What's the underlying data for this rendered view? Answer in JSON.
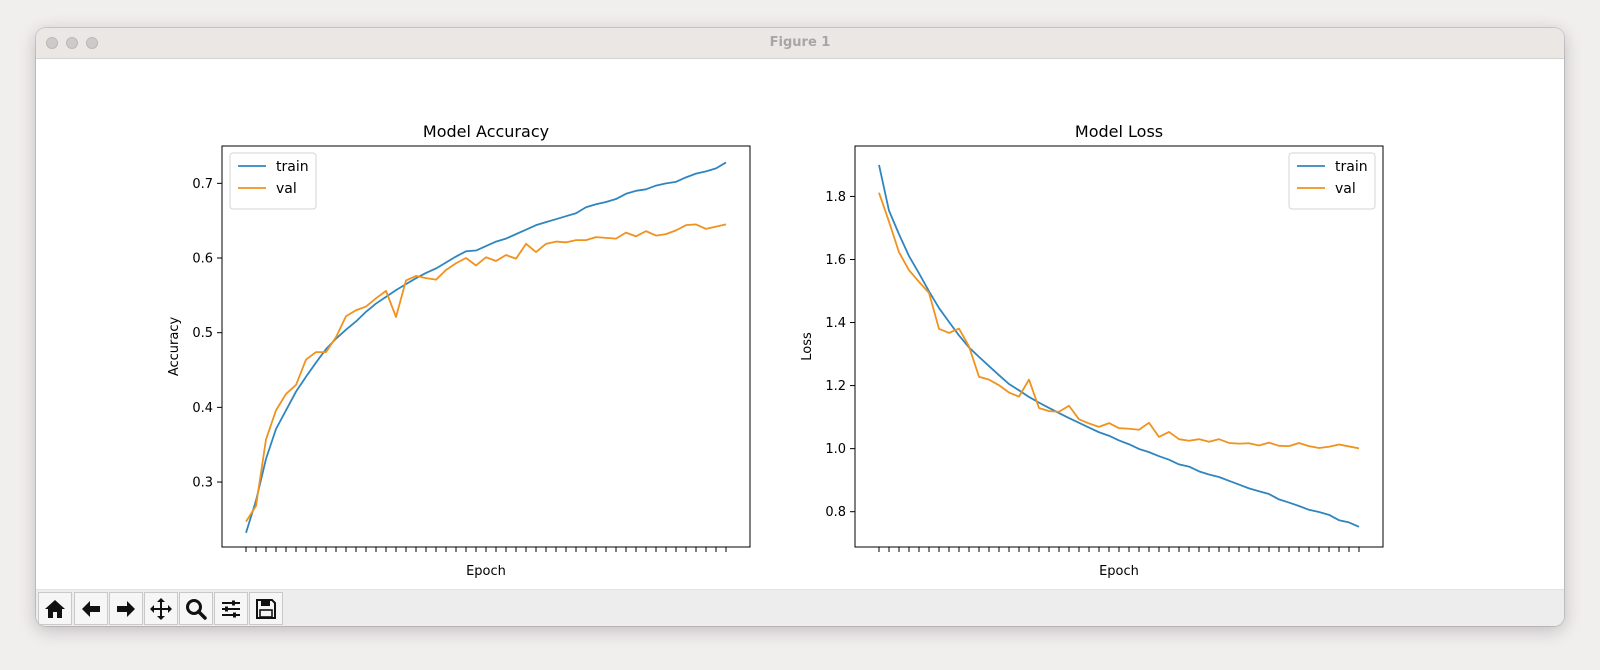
{
  "window": {
    "title": "Figure 1"
  },
  "toolbar": {
    "buttons": [
      {
        "name": "home-button",
        "icon": "home-icon"
      },
      {
        "name": "back-button",
        "icon": "arrow-left-icon"
      },
      {
        "name": "forward-button",
        "icon": "arrow-right-icon"
      },
      {
        "name": "pan-button",
        "icon": "move-icon"
      },
      {
        "name": "zoom-button",
        "icon": "magnifier-icon"
      },
      {
        "name": "configure-subplots-button",
        "icon": "sliders-icon"
      },
      {
        "name": "save-button",
        "icon": "floppy-disk-icon"
      }
    ]
  },
  "colors": {
    "train": "#2f86bf",
    "val": "#f0921d"
  },
  "chart_data": [
    {
      "type": "line",
      "title": "Model Accuracy",
      "xlabel": "Epoch",
      "ylabel": "Accuracy",
      "xlim": [
        -2.4,
        50.4
      ],
      "ylim": [
        0.213,
        0.75
      ],
      "yticks": [
        "0.3",
        "0.4",
        "0.5",
        "0.6",
        "0.7"
      ],
      "yticks_values": [
        0.3,
        0.4,
        0.5,
        0.6,
        0.7
      ],
      "legend": "upper left",
      "x": [
        0,
        1,
        2,
        3,
        4,
        5,
        6,
        7,
        8,
        9,
        10,
        11,
        12,
        13,
        14,
        15,
        16,
        17,
        18,
        19,
        20,
        21,
        22,
        23,
        24,
        25,
        26,
        27,
        28,
        29,
        30,
        31,
        32,
        33,
        34,
        35,
        36,
        37,
        38,
        39,
        40,
        41,
        42,
        43,
        44,
        45,
        46,
        47,
        48
      ],
      "series": [
        {
          "name": "train",
          "values": [
            0.232,
            0.275,
            0.331,
            0.371,
            0.396,
            0.421,
            0.441,
            0.46,
            0.478,
            0.492,
            0.504,
            0.515,
            0.528,
            0.539,
            0.548,
            0.557,
            0.565,
            0.573,
            0.58,
            0.586,
            0.594,
            0.602,
            0.609,
            0.61,
            0.616,
            0.622,
            0.626,
            0.632,
            0.638,
            0.644,
            0.648,
            0.652,
            0.656,
            0.66,
            0.668,
            0.672,
            0.675,
            0.679,
            0.686,
            0.69,
            0.692,
            0.697,
            0.7,
            0.702,
            0.708,
            0.713,
            0.716,
            0.72,
            0.728
          ]
        },
        {
          "name": "val",
          "values": [
            0.247,
            0.268,
            0.357,
            0.396,
            0.418,
            0.43,
            0.464,
            0.474,
            0.474,
            0.494,
            0.522,
            0.53,
            0.535,
            0.546,
            0.556,
            0.521,
            0.57,
            0.576,
            0.573,
            0.571,
            0.584,
            0.593,
            0.6,
            0.59,
            0.601,
            0.596,
            0.604,
            0.599,
            0.619,
            0.608,
            0.619,
            0.622,
            0.621,
            0.624,
            0.624,
            0.628,
            0.627,
            0.626,
            0.634,
            0.629,
            0.636,
            0.63,
            0.632,
            0.637,
            0.644,
            0.645,
            0.639,
            0.642,
            0.645
          ]
        }
      ]
    },
    {
      "type": "line",
      "title": "Model Loss",
      "xlabel": "Epoch",
      "ylabel": "Loss",
      "xlim": [
        -2.4,
        50.4
      ],
      "ylim": [
        0.688,
        1.96
      ],
      "yticks": [
        "0.8",
        "1.0",
        "1.2",
        "1.4",
        "1.6",
        "1.8"
      ],
      "yticks_values": [
        0.8,
        1.0,
        1.2,
        1.4,
        1.6,
        1.8
      ],
      "legend": "upper right",
      "x": [
        0,
        1,
        2,
        3,
        4,
        5,
        6,
        7,
        8,
        9,
        10,
        11,
        12,
        13,
        14,
        15,
        16,
        17,
        18,
        19,
        20,
        21,
        22,
        23,
        24,
        25,
        26,
        27,
        28,
        29,
        30,
        31,
        32,
        33,
        34,
        35,
        36,
        37,
        38,
        39,
        40,
        41,
        42,
        43,
        44,
        45,
        46,
        47,
        48
      ],
      "series": [
        {
          "name": "train",
          "values": [
            1.9,
            1.755,
            1.68,
            1.611,
            1.556,
            1.499,
            1.446,
            1.402,
            1.359,
            1.321,
            1.291,
            1.262,
            1.233,
            1.205,
            1.185,
            1.164,
            1.146,
            1.129,
            1.113,
            1.097,
            1.082,
            1.067,
            1.052,
            1.041,
            1.026,
            1.014,
            0.999,
            0.989,
            0.976,
            0.965,
            0.95,
            0.943,
            0.928,
            0.918,
            0.91,
            0.898,
            0.886,
            0.874,
            0.865,
            0.856,
            0.839,
            0.829,
            0.818,
            0.806,
            0.799,
            0.79,
            0.773,
            0.766,
            0.752
          ]
        },
        {
          "name": "val",
          "values": [
            1.812,
            1.72,
            1.623,
            1.566,
            1.529,
            1.494,
            1.38,
            1.367,
            1.381,
            1.324,
            1.228,
            1.219,
            1.201,
            1.178,
            1.165,
            1.219,
            1.129,
            1.119,
            1.117,
            1.136,
            1.093,
            1.08,
            1.069,
            1.081,
            1.065,
            1.063,
            1.06,
            1.082,
            1.037,
            1.053,
            1.03,
            1.025,
            1.03,
            1.022,
            1.03,
            1.018,
            1.016,
            1.017,
            1.01,
            1.019,
            1.009,
            1.008,
            1.018,
            1.008,
            1.002,
            1.006,
            1.013,
            1.007,
            1.001
          ]
        }
      ]
    }
  ]
}
